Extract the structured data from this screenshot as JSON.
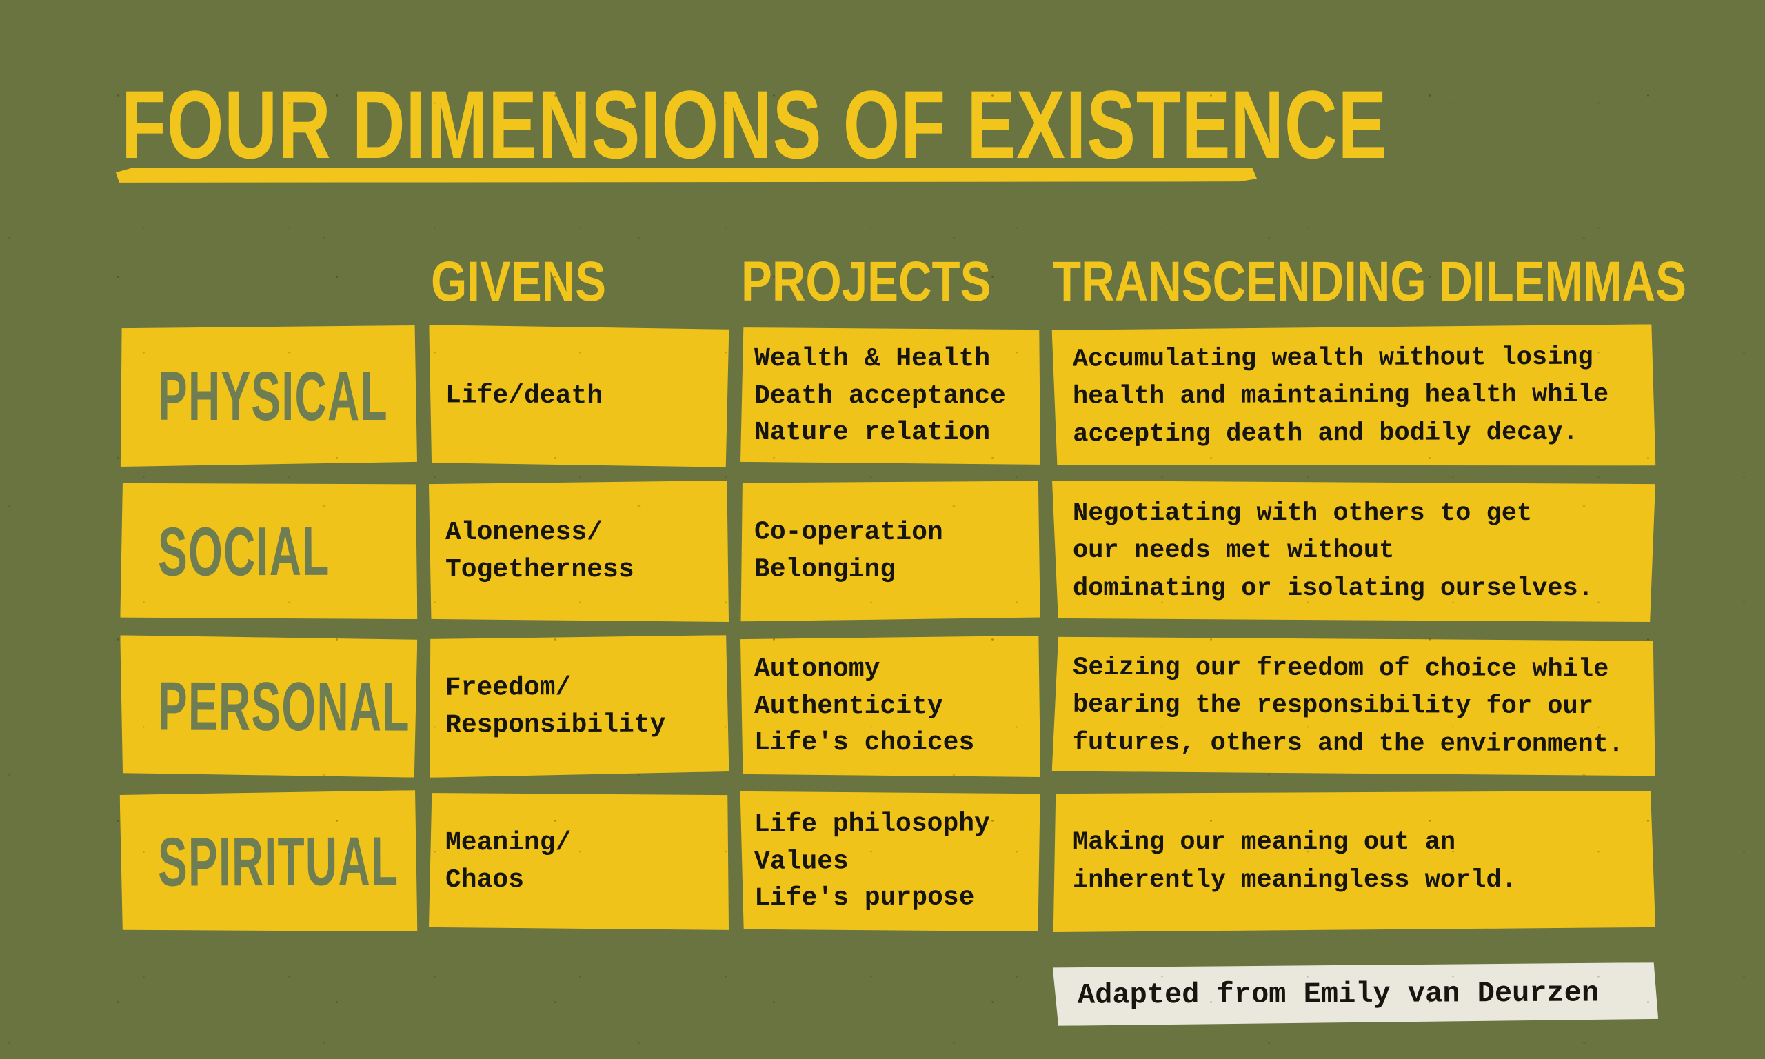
{
  "title": "FOUR DIMENSIONS OF EXISTENCE",
  "columns": [
    "GIVENS",
    "PROJECTS",
    "TRANSCENDING DILEMMAS"
  ],
  "rows": [
    {
      "dimension": "PHYSICAL",
      "givens": [
        "Life/death"
      ],
      "projects": [
        "Wealth & Health",
        "Death acceptance",
        "Nature relation"
      ],
      "dilemma": [
        "Accumulating wealth without losing",
        "health and maintaining health while",
        "accepting death and bodily decay."
      ]
    },
    {
      "dimension": "SOCIAL",
      "givens": [
        "Aloneness/",
        "Togetherness"
      ],
      "projects": [
        "Co-operation",
        "Belonging"
      ],
      "dilemma": [
        "Negotiating with others to get",
        "our needs met without",
        "dominating or isolating ourselves."
      ]
    },
    {
      "dimension": "PERSONAL",
      "givens": [
        "Freedom/",
        "Responsibility"
      ],
      "projects": [
        "Autonomy",
        "Authenticity",
        "Life's choices"
      ],
      "dilemma": [
        "Seizing our freedom of choice while",
        "bearing the responsibility for our",
        "futures, others and the environment."
      ]
    },
    {
      "dimension": "SPIRITUAL",
      "givens": [
        "Meaning/",
        "Chaos"
      ],
      "projects": [
        "Life philosophy",
        "Values",
        "Life's purpose"
      ],
      "dilemma": [
        "Making our meaning out an",
        "inherently meaningless world."
      ]
    }
  ],
  "footer": {
    "credit": "Adapted from Emily van Deurzen"
  },
  "colors": {
    "background": "#697441",
    "cell_yellow": "#f0c31b",
    "accent_yellow": "#f2c51d",
    "label_green": "#6f7d52",
    "text_black": "#17150f",
    "credit_bg": "#eae7dc"
  }
}
